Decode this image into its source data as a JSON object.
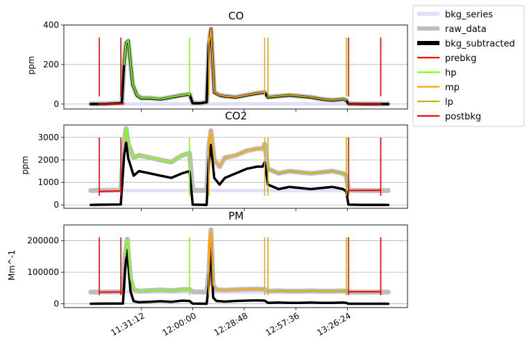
{
  "chart_data": [
    {
      "type": "line",
      "title": "CO",
      "ylabel": "ppm",
      "xlim": [
        10.8,
        14.0
      ],
      "ylim": [
        -25,
        400
      ],
      "yticks": [
        0,
        200,
        400
      ],
      "grid": "y",
      "series": [
        {
          "name": "bkg_series",
          "color": "#e0e0f8",
          "x": [
            11.05,
            13.82
          ],
          "y": [
            1,
            1
          ]
        },
        {
          "name": "raw_data",
          "color": "#bdbdbd",
          "x": [
            11.05,
            11.2,
            11.34,
            11.36,
            11.38,
            11.4,
            11.44,
            11.48,
            11.52,
            11.6,
            11.7,
            11.8,
            11.9,
            11.97,
            12.0,
            12.07,
            12.13,
            12.15,
            12.17,
            12.2,
            12.25,
            12.3,
            12.4,
            12.5,
            12.6,
            12.67,
            12.7,
            12.8,
            12.9,
            13.0,
            13.1,
            13.2,
            13.3,
            13.4,
            13.43,
            13.45,
            13.6,
            13.82
          ],
          "y": [
            1,
            2,
            5,
            200,
            310,
            320,
            100,
            45,
            30,
            30,
            25,
            35,
            45,
            50,
            5,
            5,
            10,
            300,
            380,
            60,
            45,
            40,
            35,
            45,
            55,
            60,
            35,
            40,
            45,
            40,
            35,
            25,
            20,
            25,
            20,
            2,
            1,
            1
          ]
        },
        {
          "name": "bkg_subtracted",
          "color": "#000000",
          "x": [
            11.05,
            11.2,
            11.34,
            11.36,
            11.38,
            11.4,
            11.44,
            11.48,
            11.52,
            11.6,
            11.7,
            11.8,
            11.9,
            11.97,
            12.0,
            12.07,
            12.13,
            12.15,
            12.17,
            12.2,
            12.25,
            12.3,
            12.4,
            12.5,
            12.6,
            12.67,
            12.7,
            12.8,
            12.9,
            13.0,
            13.1,
            13.2,
            13.3,
            13.4,
            13.43,
            13.45,
            13.6,
            13.82
          ],
          "y": [
            0,
            1,
            4,
            199,
            309,
            319,
            99,
            44,
            29,
            29,
            24,
            34,
            44,
            49,
            4,
            4,
            9,
            299,
            379,
            59,
            44,
            39,
            34,
            44,
            54,
            59,
            34,
            39,
            44,
            39,
            34,
            24,
            19,
            24,
            19,
            1,
            0,
            0
          ]
        },
        {
          "name": "prebkg",
          "color": "#ff0000",
          "x": [
            11.13,
            11.36
          ],
          "y": [
            1,
            1
          ]
        },
        {
          "name": "hp",
          "color": "#80ff00",
          "x": [
            11.36,
            11.38,
            11.4,
            11.44,
            11.48,
            11.52,
            11.6,
            11.7,
            11.8,
            11.9,
            11.97
          ],
          "y": [
            200,
            310,
            320,
            100,
            45,
            30,
            30,
            25,
            35,
            45,
            50
          ]
        },
        {
          "name": "mp",
          "color": "#ffa500",
          "x": [
            12.15,
            12.17,
            12.2,
            12.25,
            12.3,
            12.4,
            12.5,
            12.6,
            12.67
          ],
          "y": [
            300,
            380,
            60,
            45,
            40,
            35,
            45,
            55,
            60
          ]
        },
        {
          "name": "lp",
          "color": "#c8b400",
          "x": [
            12.7,
            12.8,
            12.9,
            13.0,
            13.1,
            13.2,
            13.3,
            13.4,
            13.43
          ],
          "y": [
            35,
            40,
            45,
            40,
            35,
            25,
            20,
            25,
            20
          ]
        },
        {
          "name": "postbkg",
          "color": "#ff0000",
          "x": [
            13.45,
            13.75
          ],
          "y": [
            1,
            1
          ]
        }
      ]
    },
    {
      "type": "line",
      "title": "CO2",
      "ylabel": "ppm",
      "xlim": [
        10.8,
        14.0
      ],
      "ylim": [
        -150,
        3550
      ],
      "yticks": [
        0,
        1000,
        2000,
        3000
      ],
      "grid": "y",
      "series": [
        {
          "name": "bkg_series",
          "color": "#e0e0f8",
          "x": [
            11.05,
            13.82
          ],
          "y": [
            640,
            640
          ]
        },
        {
          "name": "raw_data",
          "color": "#bdbdbd",
          "x": [
            11.05,
            11.2,
            11.33,
            11.36,
            11.38,
            11.4,
            11.45,
            11.5,
            11.6,
            11.7,
            11.8,
            11.9,
            11.97,
            12.0,
            12.13,
            12.15,
            12.17,
            12.2,
            12.25,
            12.3,
            12.4,
            12.5,
            12.6,
            12.65,
            12.67,
            12.7,
            12.8,
            12.9,
            13.0,
            13.1,
            13.2,
            13.3,
            13.4,
            13.43,
            13.45,
            13.6,
            13.82
          ],
          "y": [
            640,
            650,
            660,
            2800,
            3400,
            2700,
            2100,
            2200,
            2100,
            2000,
            1900,
            2200,
            2300,
            650,
            640,
            2600,
            3300,
            2000,
            1700,
            2100,
            2200,
            2400,
            2500,
            2500,
            2700,
            1600,
            1400,
            1500,
            1450,
            1400,
            1450,
            1500,
            1400,
            1300,
            650,
            640,
            640
          ]
        },
        {
          "name": "bkg_subtracted",
          "color": "#000000",
          "x": [
            11.05,
            11.2,
            11.33,
            11.36,
            11.38,
            11.4,
            11.45,
            11.5,
            11.6,
            11.7,
            11.8,
            11.9,
            11.97,
            12.0,
            12.13,
            12.15,
            12.17,
            12.2,
            12.25,
            12.3,
            12.4,
            12.5,
            12.6,
            12.65,
            12.67,
            12.7,
            12.8,
            12.9,
            13.0,
            13.1,
            13.2,
            13.3,
            13.4,
            13.43,
            13.45,
            13.6,
            13.82
          ],
          "y": [
            0,
            10,
            20,
            2160,
            2760,
            2060,
            1300,
            1500,
            1400,
            1300,
            1200,
            1400,
            1500,
            10,
            0,
            1960,
            2660,
            1200,
            900,
            1200,
            1400,
            1600,
            1700,
            1700,
            1900,
            900,
            700,
            800,
            750,
            700,
            750,
            800,
            700,
            600,
            10,
            0,
            0
          ]
        },
        {
          "name": "prebkg",
          "color": "#ff0000",
          "x": [
            11.13,
            11.33
          ],
          "y": [
            600,
            620
          ]
        },
        {
          "name": "hp",
          "color": "#80ff00",
          "x": [
            11.36,
            11.38,
            11.4,
            11.45,
            11.5,
            11.6,
            11.7,
            11.8,
            11.9,
            11.97
          ],
          "y": [
            2800,
            3400,
            2700,
            2100,
            2200,
            2100,
            2000,
            1900,
            2200,
            2300
          ]
        },
        {
          "name": "mp",
          "color": "#ffa500",
          "x": [
            12.15,
            12.17,
            12.2,
            12.25,
            12.3,
            12.4,
            12.5,
            12.6,
            12.65,
            12.67
          ],
          "y": [
            2600,
            3300,
            2000,
            1700,
            2100,
            2200,
            2400,
            2500,
            2500,
            2700
          ]
        },
        {
          "name": "lp",
          "color": "#c8b400",
          "x": [
            12.7,
            12.8,
            12.9,
            13.0,
            13.1,
            13.2,
            13.3,
            13.4,
            13.43
          ],
          "y": [
            1600,
            1400,
            1500,
            1450,
            1400,
            1450,
            1500,
            1400,
            1300
          ]
        },
        {
          "name": "postbkg",
          "color": "#ff0000",
          "x": [
            13.45,
            13.75
          ],
          "y": [
            640,
            650
          ]
        }
      ]
    },
    {
      "type": "line",
      "title": "PM",
      "ylabel": "Mm^-1",
      "xlim": [
        10.8,
        14.0
      ],
      "ylim": [
        -12000,
        250000
      ],
      "yticks": [
        0,
        100000,
        200000
      ],
      "xticks": [
        "11:31:12",
        "12:00:00",
        "12:28:48",
        "12:57:36",
        "13:26:24"
      ],
      "xtick_values": [
        11.52,
        12.0,
        12.48,
        12.96,
        13.44
      ],
      "grid": "y",
      "series": [
        {
          "name": "bkg_series",
          "color": "#e0e0f8",
          "x": [
            11.05,
            13.82
          ],
          "y": [
            37000,
            37000
          ]
        },
        {
          "name": "raw_data",
          "color": "#bdbdbd",
          "x": [
            11.05,
            11.2,
            11.35,
            11.37,
            11.39,
            11.42,
            11.45,
            11.5,
            11.6,
            11.7,
            11.8,
            11.9,
            11.97,
            12.0,
            12.13,
            12.15,
            12.17,
            12.19,
            12.22,
            12.3,
            12.4,
            12.5,
            12.6,
            12.67,
            12.7,
            12.8,
            12.9,
            13.0,
            13.1,
            13.2,
            13.3,
            13.4,
            13.43,
            13.45,
            13.6,
            13.82
          ],
          "y": [
            37000,
            37500,
            38000,
            150000,
            205000,
            80000,
            45000,
            40000,
            42000,
            44000,
            42000,
            45000,
            46000,
            38000,
            37000,
            100000,
            235000,
            60000,
            45000,
            43000,
            45000,
            46000,
            47000,
            46000,
            40000,
            41000,
            40000,
            40000,
            41000,
            40000,
            40000,
            41000,
            40000,
            37000,
            37000,
            37000
          ]
        },
        {
          "name": "bkg_subtracted",
          "color": "#000000",
          "x": [
            11.05,
            11.2,
            11.35,
            11.37,
            11.39,
            11.42,
            11.45,
            11.5,
            11.6,
            11.7,
            11.8,
            11.9,
            11.97,
            12.0,
            12.13,
            12.15,
            12.17,
            12.19,
            12.22,
            12.3,
            12.4,
            12.5,
            12.6,
            12.67,
            12.7,
            12.8,
            12.9,
            13.0,
            13.1,
            13.2,
            13.3,
            13.4,
            13.43,
            13.45,
            13.6,
            13.82
          ],
          "y": [
            0,
            500,
            1000,
            110000,
            170000,
            40000,
            8000,
            5000,
            6000,
            8000,
            6000,
            10000,
            9000,
            500,
            0,
            60000,
            200000,
            20000,
            9000,
            7000,
            9000,
            10000,
            11000,
            10000,
            3000,
            4000,
            3000,
            3000,
            4000,
            3000,
            3000,
            4000,
            3000,
            0,
            0,
            0
          ]
        },
        {
          "name": "prebkg",
          "color": "#ff0000",
          "x": [
            11.13,
            11.35
          ],
          "y": [
            37000,
            37500
          ]
        },
        {
          "name": "hp",
          "color": "#80ff00",
          "x": [
            11.37,
            11.39,
            11.42,
            11.45,
            11.5,
            11.6,
            11.7,
            11.8,
            11.9,
            11.97
          ],
          "y": [
            150000,
            205000,
            80000,
            45000,
            40000,
            42000,
            44000,
            42000,
            45000,
            46000
          ]
        },
        {
          "name": "mp",
          "color": "#ffa500",
          "x": [
            12.15,
            12.17,
            12.19,
            12.22,
            12.3,
            12.4,
            12.5,
            12.6,
            12.67
          ],
          "y": [
            100000,
            235000,
            60000,
            45000,
            43000,
            45000,
            46000,
            47000,
            46000
          ]
        },
        {
          "name": "lp",
          "color": "#c8b400",
          "x": [
            12.7,
            12.8,
            12.9,
            13.0,
            13.1,
            13.2,
            13.3,
            13.4,
            13.43
          ],
          "y": [
            40000,
            41000,
            40000,
            40000,
            41000,
            40000,
            40000,
            41000,
            40000
          ]
        },
        {
          "name": "postbkg",
          "color": "#ff0000",
          "x": [
            13.45,
            13.75
          ],
          "y": [
            38000,
            38000
          ]
        }
      ]
    }
  ],
  "markers": {
    "note": "vertical event lines drawn on every panel",
    "items": [
      {
        "x": 11.13,
        "color": "#ff0000"
      },
      {
        "x": 11.33,
        "color": "#ff0000"
      },
      {
        "x": 11.97,
        "color": "#80ff00"
      },
      {
        "x": 12.15,
        "color": "#ffa500"
      },
      {
        "x": 12.67,
        "color": "#ffa500"
      },
      {
        "x": 12.7,
        "color": "#c8b400"
      },
      {
        "x": 13.43,
        "color": "#c8b400"
      },
      {
        "x": 13.45,
        "color": "#ff0000"
      },
      {
        "x": 13.75,
        "color": "#ff0000"
      }
    ]
  },
  "legend": {
    "placement": "right",
    "items": [
      {
        "label": "bkg_series",
        "color": "#e0e0f8",
        "weight": "thick"
      },
      {
        "label": "raw_data",
        "color": "#bdbdbd",
        "weight": "thick"
      },
      {
        "label": "bkg_subtracted",
        "color": "#000000",
        "weight": "thick"
      },
      {
        "label": "prebkg",
        "color": "#ff0000",
        "weight": "thin"
      },
      {
        "label": "hp",
        "color": "#80ff00",
        "weight": "thin"
      },
      {
        "label": "mp",
        "color": "#ffa500",
        "weight": "thin"
      },
      {
        "label": "lp",
        "color": "#c8b400",
        "weight": "thin"
      },
      {
        "label": "postbkg",
        "color": "#ff0000",
        "weight": "thin"
      }
    ]
  }
}
